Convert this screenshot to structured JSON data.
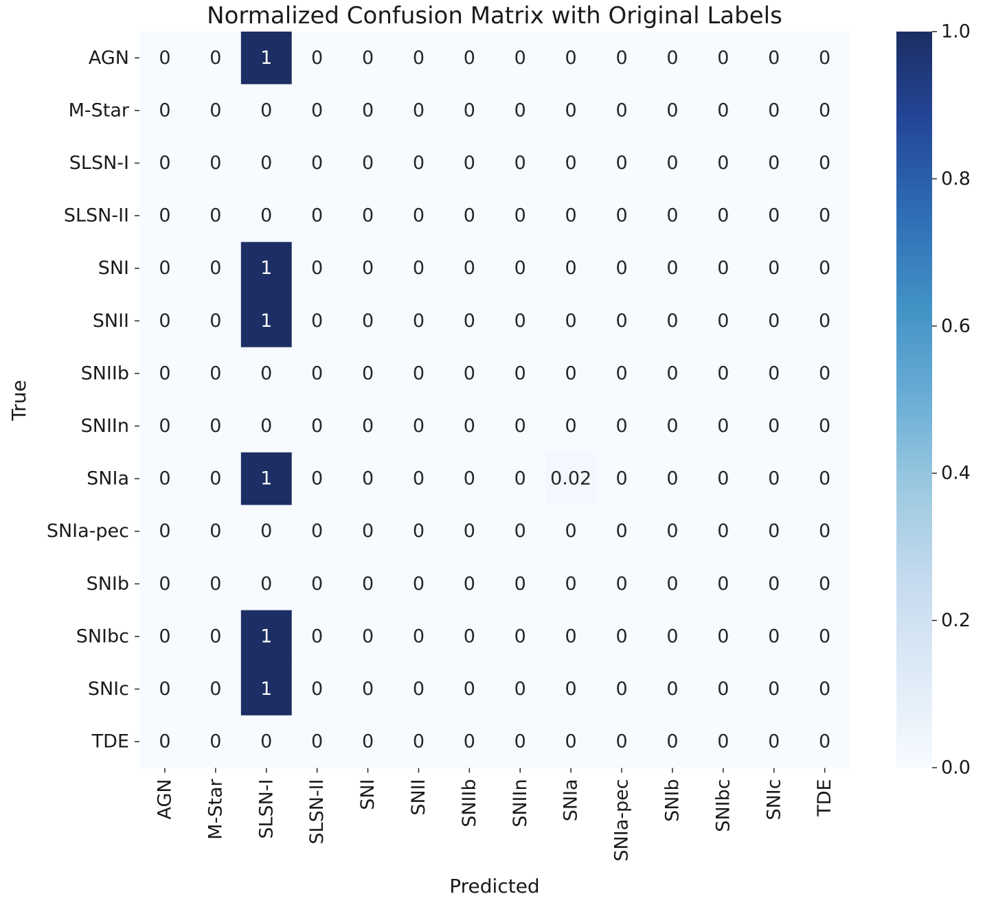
{
  "chart_data": {
    "type": "heatmap",
    "title": "Normalized Confusion Matrix with Original Labels",
    "xlabel": "Predicted",
    "ylabel": "True",
    "row_labels": [
      "AGN",
      "M-Star",
      "SLSN-I",
      "SLSN-II",
      "SNI",
      "SNII",
      "SNIIb",
      "SNIIn",
      "SNIa",
      "SNIa-pec",
      "SNIb",
      "SNIbc",
      "SNIc",
      "TDE"
    ],
    "col_labels": [
      "AGN",
      "M-Star",
      "SLSN-I",
      "SLSN-II",
      "SNI",
      "SNII",
      "SNIIb",
      "SNIIn",
      "SNIa",
      "SNIa-pec",
      "SNIb",
      "SNIbc",
      "SNIc",
      "TDE"
    ],
    "values": [
      [
        0,
        0,
        1,
        0,
        0,
        0,
        0,
        0,
        0,
        0,
        0,
        0,
        0,
        0
      ],
      [
        0,
        0,
        0,
        0,
        0,
        0,
        0,
        0,
        0,
        0,
        0,
        0,
        0,
        0
      ],
      [
        0,
        0,
        0,
        0,
        0,
        0,
        0,
        0,
        0,
        0,
        0,
        0,
        0,
        0
      ],
      [
        0,
        0,
        0,
        0,
        0,
        0,
        0,
        0,
        0,
        0,
        0,
        0,
        0,
        0
      ],
      [
        0,
        0,
        1,
        0,
        0,
        0,
        0,
        0,
        0,
        0,
        0,
        0,
        0,
        0
      ],
      [
        0,
        0,
        1,
        0,
        0,
        0,
        0,
        0,
        0,
        0,
        0,
        0,
        0,
        0
      ],
      [
        0,
        0,
        0,
        0,
        0,
        0,
        0,
        0,
        0,
        0,
        0,
        0,
        0,
        0
      ],
      [
        0,
        0,
        0,
        0,
        0,
        0,
        0,
        0,
        0,
        0,
        0,
        0,
        0,
        0
      ],
      [
        0,
        0,
        1,
        0,
        0,
        0,
        0,
        0,
        0.02,
        0,
        0,
        0,
        0,
        0
      ],
      [
        0,
        0,
        0,
        0,
        0,
        0,
        0,
        0,
        0,
        0,
        0,
        0,
        0,
        0
      ],
      [
        0,
        0,
        0,
        0,
        0,
        0,
        0,
        0,
        0,
        0,
        0,
        0,
        0,
        0
      ],
      [
        0,
        0,
        1,
        0,
        0,
        0,
        0,
        0,
        0,
        0,
        0,
        0,
        0,
        0
      ],
      [
        0,
        0,
        1,
        0,
        0,
        0,
        0,
        0,
        0,
        0,
        0,
        0,
        0,
        0
      ],
      [
        0,
        0,
        0,
        0,
        0,
        0,
        0,
        0,
        0,
        0,
        0,
        0,
        0,
        0
      ]
    ],
    "annotations": [
      [
        "0",
        "0",
        "1",
        "0",
        "0",
        "0",
        "0",
        "0",
        "0",
        "0",
        "0",
        "0",
        "0",
        "0"
      ],
      [
        "0",
        "0",
        "0",
        "0",
        "0",
        "0",
        "0",
        "0",
        "0",
        "0",
        "0",
        "0",
        "0",
        "0"
      ],
      [
        "0",
        "0",
        "0",
        "0",
        "0",
        "0",
        "0",
        "0",
        "0",
        "0",
        "0",
        "0",
        "0",
        "0"
      ],
      [
        "0",
        "0",
        "0",
        "0",
        "0",
        "0",
        "0",
        "0",
        "0",
        "0",
        "0",
        "0",
        "0",
        "0"
      ],
      [
        "0",
        "0",
        "1",
        "0",
        "0",
        "0",
        "0",
        "0",
        "0",
        "0",
        "0",
        "0",
        "0",
        "0"
      ],
      [
        "0",
        "0",
        "1",
        "0",
        "0",
        "0",
        "0",
        "0",
        "0",
        "0",
        "0",
        "0",
        "0",
        "0"
      ],
      [
        "0",
        "0",
        "0",
        "0",
        "0",
        "0",
        "0",
        "0",
        "0",
        "0",
        "0",
        "0",
        "0",
        "0"
      ],
      [
        "0",
        "0",
        "0",
        "0",
        "0",
        "0",
        "0",
        "0",
        "0",
        "0",
        "0",
        "0",
        "0",
        "0"
      ],
      [
        "0",
        "0",
        "1",
        "0",
        "0",
        "0",
        "0",
        "0",
        "0.02",
        "0",
        "0",
        "0",
        "0",
        "0"
      ],
      [
        "0",
        "0",
        "0",
        "0",
        "0",
        "0",
        "0",
        "0",
        "0",
        "0",
        "0",
        "0",
        "0",
        "0"
      ],
      [
        "0",
        "0",
        "0",
        "0",
        "0",
        "0",
        "0",
        "0",
        "0",
        "0",
        "0",
        "0",
        "0",
        "0"
      ],
      [
        "0",
        "0",
        "1",
        "0",
        "0",
        "0",
        "0",
        "0",
        "0",
        "0",
        "0",
        "0",
        "0",
        "0"
      ],
      [
        "0",
        "0",
        "1",
        "0",
        "0",
        "0",
        "0",
        "0",
        "0",
        "0",
        "0",
        "0",
        "0",
        "0"
      ],
      [
        "0",
        "0",
        "0",
        "0",
        "0",
        "0",
        "0",
        "0",
        "0",
        "0",
        "0",
        "0",
        "0",
        "0"
      ]
    ],
    "colorbar": {
      "range": [
        0,
        1
      ],
      "ticks": [
        "0.0",
        "0.2",
        "0.4",
        "0.6",
        "0.8",
        "1.0"
      ],
      "colormap": "Blues",
      "low_color": "#f7fbff",
      "high_color": "#1c2e63"
    },
    "grid": false,
    "legend": "colorbar-right"
  }
}
